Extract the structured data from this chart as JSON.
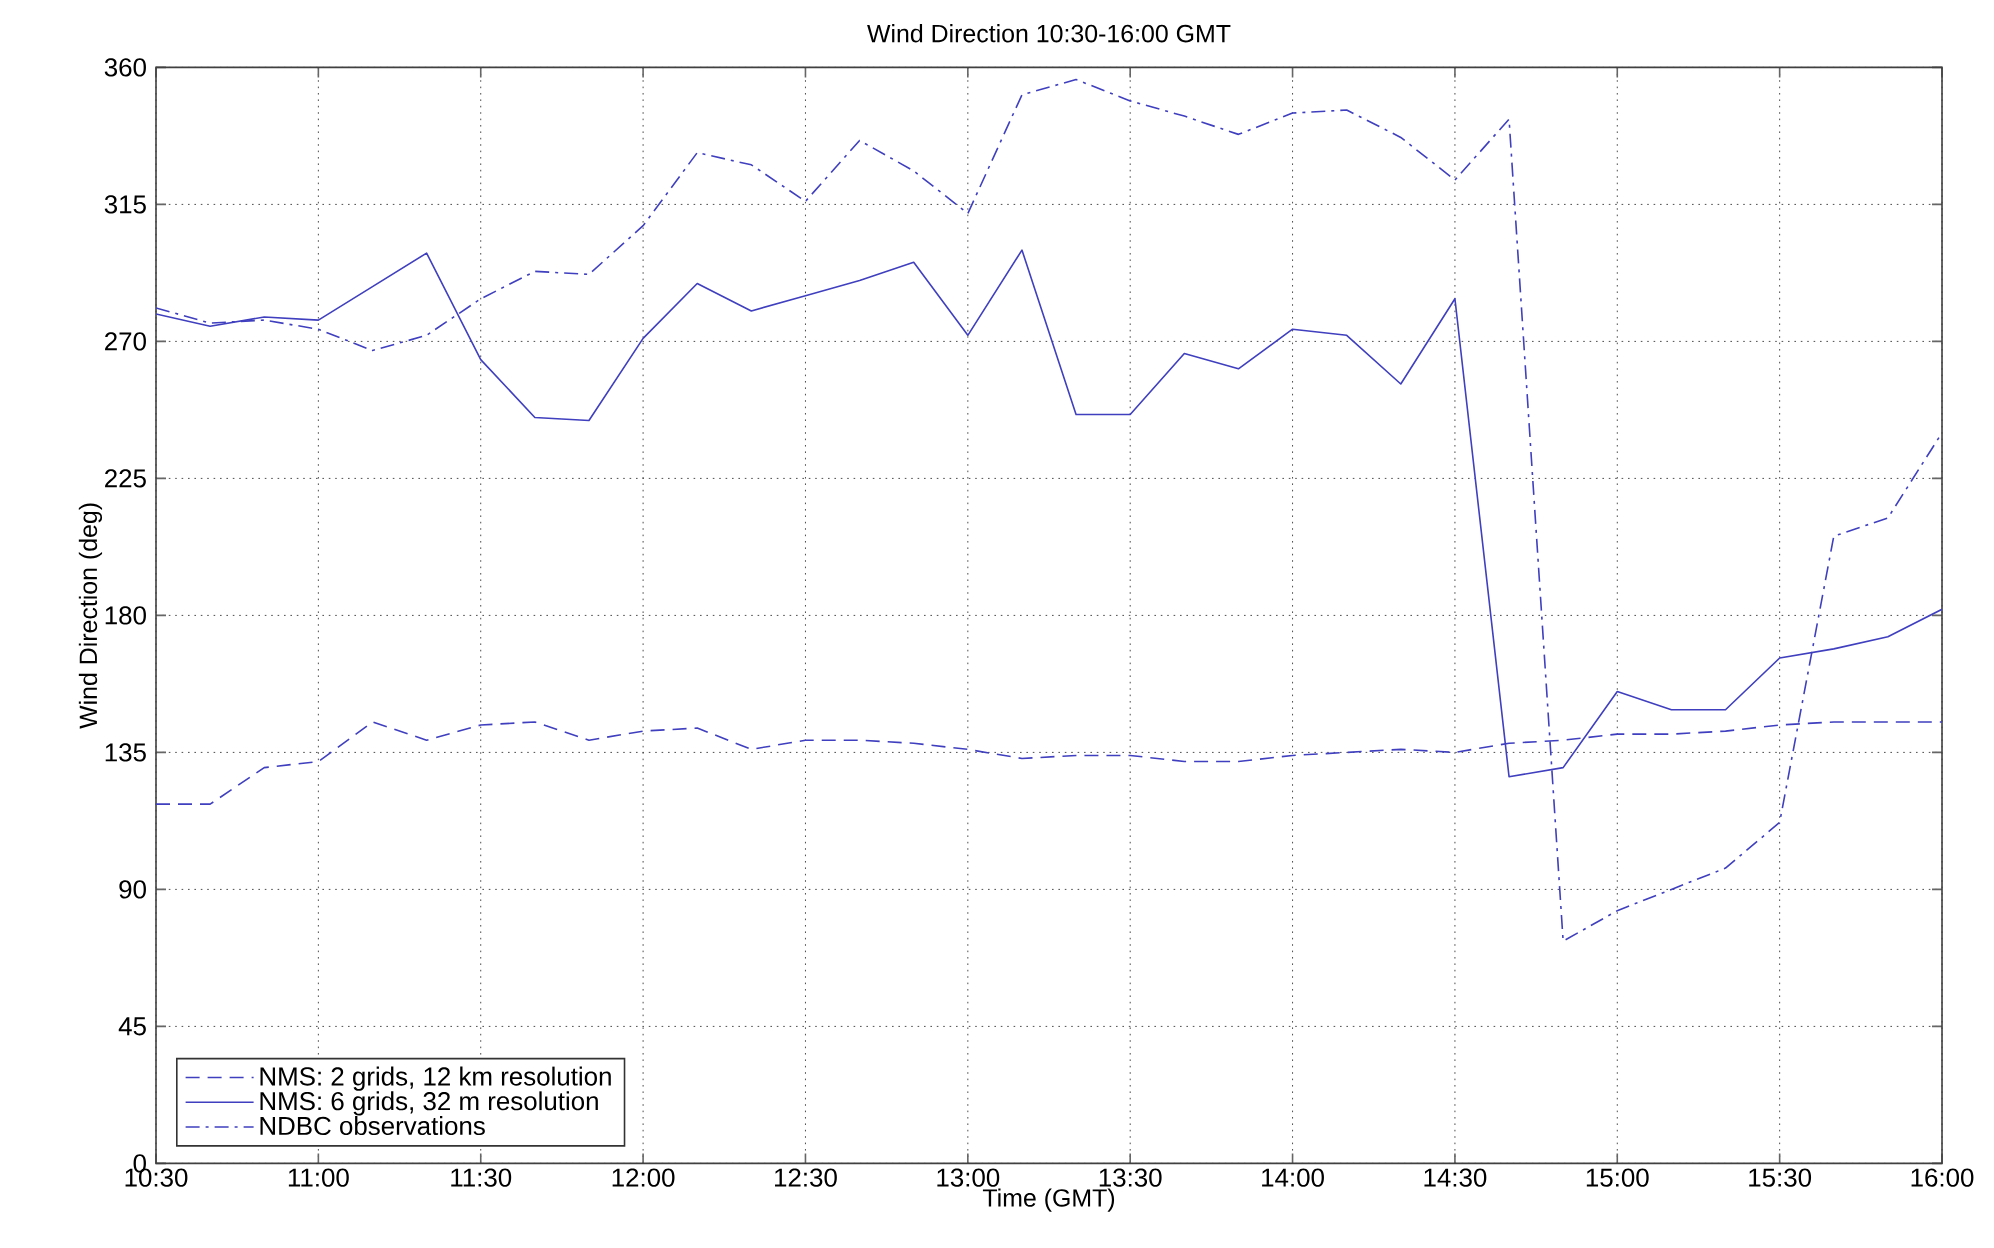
{
  "chart_data": {
    "type": "line",
    "title": "Wind Direction 10:30-16:00 GMT",
    "xlabel": "Time (GMT)",
    "ylabel": "Wind Direction (deg)",
    "x": [
      10.5,
      10.6667,
      10.8333,
      11,
      11.1667,
      11.3333,
      11.5,
      11.6667,
      11.8333,
      12,
      12.1667,
      12.3333,
      12.5,
      12.6667,
      12.8333,
      13,
      13.1667,
      13.3333,
      13.5,
      13.6667,
      13.8333,
      14,
      14.1667,
      14.3333,
      14.5,
      14.6667,
      14.8333,
      15,
      15.1667,
      15.3333,
      15.5,
      15.6667,
      15.8333,
      16
    ],
    "series": [
      {
        "name": "NMS: 2 grids, 12 km resolution",
        "color": "#3f3fbf",
        "line_style": "dashed",
        "values": [
          118,
          118,
          130,
          132,
          145,
          139,
          144,
          145,
          139,
          142,
          143,
          136,
          139,
          139,
          138,
          136,
          133,
          134,
          134,
          132,
          132,
          134,
          135,
          136,
          135,
          138,
          139,
          141,
          141,
          142,
          144,
          145,
          145,
          145
        ]
      },
      {
        "name": "NMS: 6 grids, 32 m resolution",
        "color": "#3f3fbf",
        "line_style": "solid",
        "values": [
          279,
          275,
          278,
          277,
          288,
          299,
          264,
          245,
          244,
          271,
          289,
          280,
          285,
          290,
          296,
          272,
          300,
          246,
          246,
          266,
          261,
          274,
          272,
          256,
          284,
          127,
          130,
          155,
          149,
          149,
          166,
          169,
          173,
          182
        ]
      },
      {
        "name": "NDBC observations",
        "color": "#3f3fbf",
        "line_style": "dashdot",
        "values": [
          281,
          276,
          277,
          274,
          267,
          272,
          284,
          293,
          292,
          308,
          332,
          328,
          316,
          336,
          326,
          312,
          351,
          356,
          349,
          344,
          338,
          345,
          346,
          337,
          323,
          343,
          73,
          83,
          90,
          97,
          112,
          206,
          212,
          240
        ]
      }
    ],
    "xlim": [
      10.5,
      16
    ],
    "ylim": [
      0,
      360
    ],
    "xticks": [
      {
        "value": 10.5,
        "label": "10:30"
      },
      {
        "value": 11,
        "label": "11:00"
      },
      {
        "value": 11.5,
        "label": "11:30"
      },
      {
        "value": 12,
        "label": "12:00"
      },
      {
        "value": 12.5,
        "label": "12:30"
      },
      {
        "value": 13,
        "label": "13:00"
      },
      {
        "value": 13.5,
        "label": "13:30"
      },
      {
        "value": 14,
        "label": "14:00"
      },
      {
        "value": 14.5,
        "label": "14:30"
      },
      {
        "value": 15,
        "label": "15:00"
      },
      {
        "value": 15.5,
        "label": "15:30"
      },
      {
        "value": 16,
        "label": "16:00"
      }
    ],
    "yticks": [
      0,
      45,
      90,
      135,
      180,
      225,
      270,
      315,
      360
    ],
    "grid": true,
    "legend": "bottom left"
  }
}
